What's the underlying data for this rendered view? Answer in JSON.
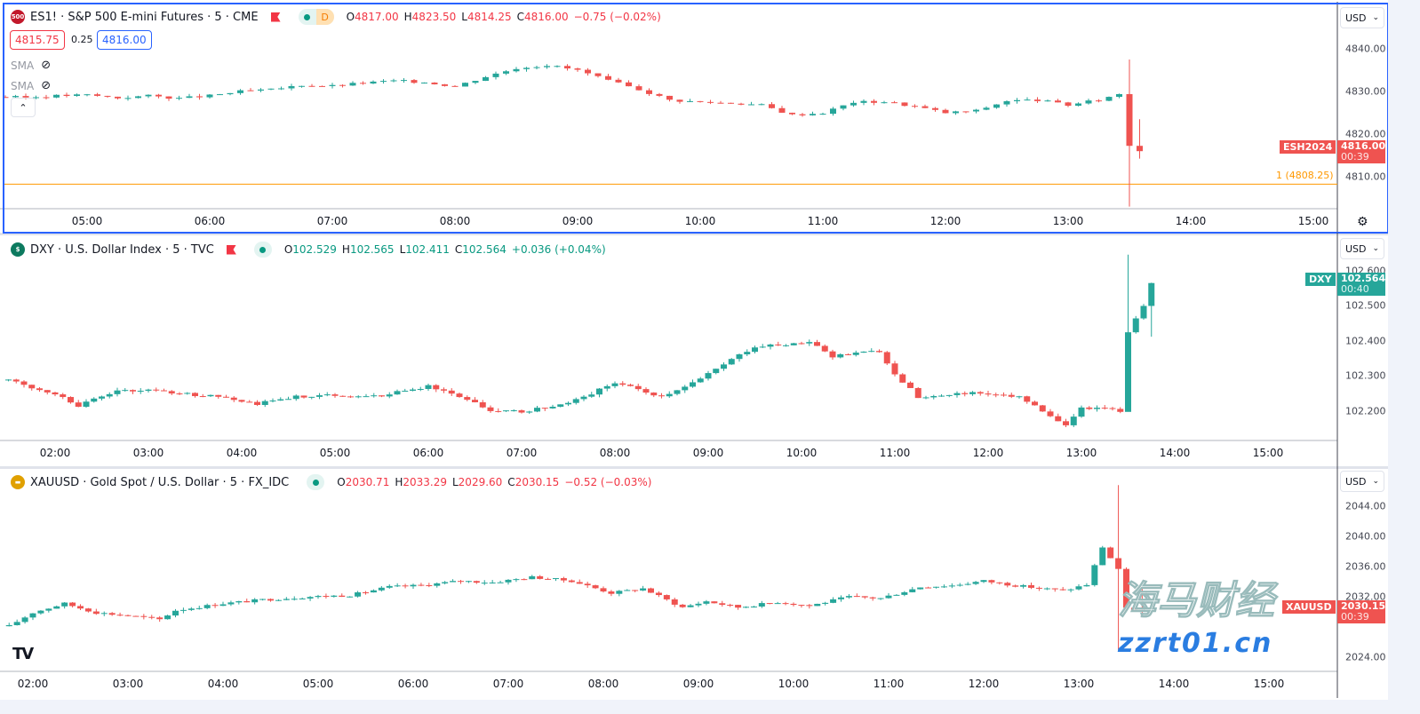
{
  "colors": {
    "up": "#26a69a",
    "down": "#ef5350",
    "accent": "#2962ff",
    "order": "#ff9800"
  },
  "panes": [
    {
      "id": "es",
      "symbol": "ES1!",
      "description": "S&P 500 E-mini Futures",
      "interval": "5",
      "exchange": "CME",
      "icon_text": "500",
      "icon_color": "#c2182b",
      "ohlc": {
        "o": "4817.00",
        "h": "4823.50",
        "l": "4814.25",
        "c": "4816.00",
        "change": "−0.75 (−0.02%)",
        "dir": "down"
      },
      "session": "D",
      "bid": "4815.75",
      "spread": "0.25",
      "ask": "4816.00",
      "indicators": [
        {
          "label": "SMA",
          "icon": "eye-hidden-icon"
        },
        {
          "label": "SMA",
          "icon": "eye-hidden-icon"
        }
      ],
      "currency": "USD",
      "price_ticks": [
        "4840.00",
        "4830.00",
        "4820.00",
        "4810.00"
      ],
      "time_ticks": [
        "05:00",
        "06:00",
        "07:00",
        "08:00",
        "09:00",
        "10:00",
        "11:00",
        "12:00",
        "13:00",
        "14:00",
        "15:00"
      ],
      "last": {
        "tag": "ESH2024",
        "price": "4816.00",
        "countdown": "00:39"
      },
      "order_line": {
        "label": "1 (4808.25)",
        "price": 4808.25
      },
      "chart_data": {
        "type": "candlestick",
        "interval_minutes": 5,
        "note_values": "approximate closes",
        "x": [
          "04:15",
          "04:30",
          "04:45",
          "05:00",
          "05:15",
          "05:30",
          "05:45",
          "06:00",
          "06:15",
          "06:30",
          "06:45",
          "07:00",
          "07:15",
          "07:30",
          "07:45",
          "08:00",
          "08:15",
          "08:30",
          "08:45",
          "09:00",
          "09:15",
          "09:30",
          "09:45",
          "10:00",
          "10:15",
          "10:30",
          "10:45",
          "11:00",
          "11:15",
          "11:30",
          "11:45",
          "12:00",
          "12:15",
          "12:30",
          "12:45",
          "13:00",
          "13:15",
          "13:25",
          "13:30",
          "13:35"
        ],
        "close": [
          4828.8,
          4828.6,
          4829.0,
          4829.2,
          4828.5,
          4829.0,
          4828.4,
          4829.0,
          4830.0,
          4830.4,
          4831.5,
          4831.3,
          4832.0,
          4832.5,
          4832.2,
          4831.2,
          4833.5,
          4835.5,
          4836.2,
          4835.0,
          4832.5,
          4830.5,
          4828.0,
          4827.5,
          4827.3,
          4826.8,
          4824.5,
          4825.0,
          4827.5,
          4827.6,
          4826.5,
          4825.0,
          4825.5,
          4827.8,
          4828.0,
          4826.8,
          4828.0,
          4829.5,
          4817.5,
          4816.0
        ],
        "spikes": [
          {
            "x": "13:30",
            "high": 4837.5,
            "low": 4803
          },
          {
            "x": "13:35",
            "high": 4823.5,
            "low": 4814.25
          }
        ]
      }
    },
    {
      "id": "dxy",
      "symbol": "DXY",
      "description": "U.S. Dollar Index",
      "interval": "5",
      "exchange": "TVC",
      "icon_text": "$",
      "icon_color": "#0d7a5f",
      "ohlc": {
        "o": "102.529",
        "h": "102.565",
        "l": "102.411",
        "c": "102.564",
        "change": "+0.036 (+0.04%)",
        "dir": "up"
      },
      "currency": "USD",
      "price_ticks": [
        "102.600",
        "102.500",
        "102.400",
        "102.300",
        "102.200"
      ],
      "time_ticks": [
        "02:00",
        "03:00",
        "04:00",
        "05:00",
        "06:00",
        "07:00",
        "08:00",
        "09:00",
        "10:00",
        "11:00",
        "12:00",
        "13:00",
        "14:00",
        "15:00"
      ],
      "last": {
        "tag": "DXY",
        "price": "102.564",
        "countdown": "00:40"
      },
      "chart_data": {
        "type": "candlestick",
        "interval_minutes": 5,
        "x": [
          "01:30",
          "01:45",
          "02:00",
          "02:15",
          "02:40",
          "03:00",
          "03:20",
          "03:50",
          "04:10",
          "04:35",
          "05:00",
          "05:25",
          "06:00",
          "06:25",
          "06:40",
          "07:00",
          "07:30",
          "08:00",
          "08:30",
          "08:55",
          "09:15",
          "09:30",
          "09:50",
          "10:05",
          "10:20",
          "10:50",
          "11:00",
          "11:15",
          "11:45",
          "12:00",
          "12:20",
          "12:35",
          "12:50",
          "13:00",
          "13:25",
          "13:30",
          "13:40",
          "13:45"
        ],
        "close": [
          102.288,
          102.265,
          102.25,
          102.215,
          102.258,
          102.258,
          102.25,
          102.237,
          102.22,
          102.24,
          102.245,
          102.24,
          102.27,
          102.235,
          102.2,
          102.197,
          102.22,
          102.28,
          102.24,
          102.29,
          102.345,
          102.383,
          102.39,
          102.395,
          102.355,
          102.37,
          102.305,
          102.24,
          102.25,
          102.25,
          102.24,
          102.2,
          102.16,
          102.21,
          102.2,
          102.42,
          102.5,
          102.564
        ],
        "spikes": [
          {
            "x": "13:30",
            "high": 102.645,
            "low": 102.26
          },
          {
            "x": "13:45",
            "high": 102.565,
            "low": 102.411
          }
        ]
      }
    },
    {
      "id": "xau",
      "symbol": "XAUUSD",
      "description": "Gold Spot / U.S. Dollar",
      "interval": "5",
      "exchange": "FX_IDC",
      "icon_text": "▬",
      "icon_color": "#e0a000",
      "ohlc": {
        "o": "2030.71",
        "h": "2033.29",
        "l": "2029.60",
        "c": "2030.15",
        "change": "−0.52 (−0.03%)",
        "dir": "down"
      },
      "currency": "USD",
      "price_ticks": [
        "2044.00",
        "2040.00",
        "2036.00",
        "2032.00",
        "2024.00"
      ],
      "time_ticks": [
        "02:00",
        "03:00",
        "04:00",
        "05:00",
        "06:00",
        "07:00",
        "08:00",
        "09:00",
        "10:00",
        "11:00",
        "12:00",
        "13:00",
        "14:00",
        "15:00"
      ],
      "last": {
        "tag": "XAUUSD",
        "price": "2030.15",
        "countdown": "00:39"
      },
      "chart_data": {
        "type": "candlestick",
        "interval_minutes": 5,
        "x": [
          "01:45",
          "02:00",
          "02:20",
          "02:40",
          "03:00",
          "03:20",
          "03:30",
          "04:00",
          "04:25",
          "04:55",
          "05:20",
          "05:45",
          "06:05",
          "06:30",
          "06:50",
          "07:15",
          "07:40",
          "08:05",
          "08:25",
          "08:50",
          "09:05",
          "09:25",
          "09:50",
          "10:10",
          "10:35",
          "10:55",
          "11:20",
          "11:40",
          "12:00",
          "12:20",
          "12:50",
          "13:05",
          "13:15",
          "13:25",
          "13:30",
          "13:40"
        ],
        "close": [
          2028.1,
          2029.9,
          2031.1,
          2029.9,
          2029.5,
          2029.0,
          2030.2,
          2031.1,
          2031.6,
          2032.0,
          2032.2,
          2033.3,
          2033.5,
          2034.1,
          2033.9,
          2034.6,
          2034.1,
          2032.5,
          2033.1,
          2030.6,
          2031.4,
          2030.6,
          2031.3,
          2030.8,
          2032.0,
          2031.8,
          2033.3,
          2033.5,
          2034.1,
          2033.5,
          2032.8,
          2033.6,
          2038.6,
          2035.7,
          2030.4,
          2030.15
        ],
        "spikes": [
          {
            "x": "13:25",
            "high": 2046.8,
            "low": 2025.0
          },
          {
            "x": "13:40",
            "high": 2033.29,
            "low": 2029.6
          }
        ]
      }
    }
  ],
  "watermark": {
    "text": "海马财经",
    "url": "zzrt01.cn"
  },
  "logo": "TV"
}
